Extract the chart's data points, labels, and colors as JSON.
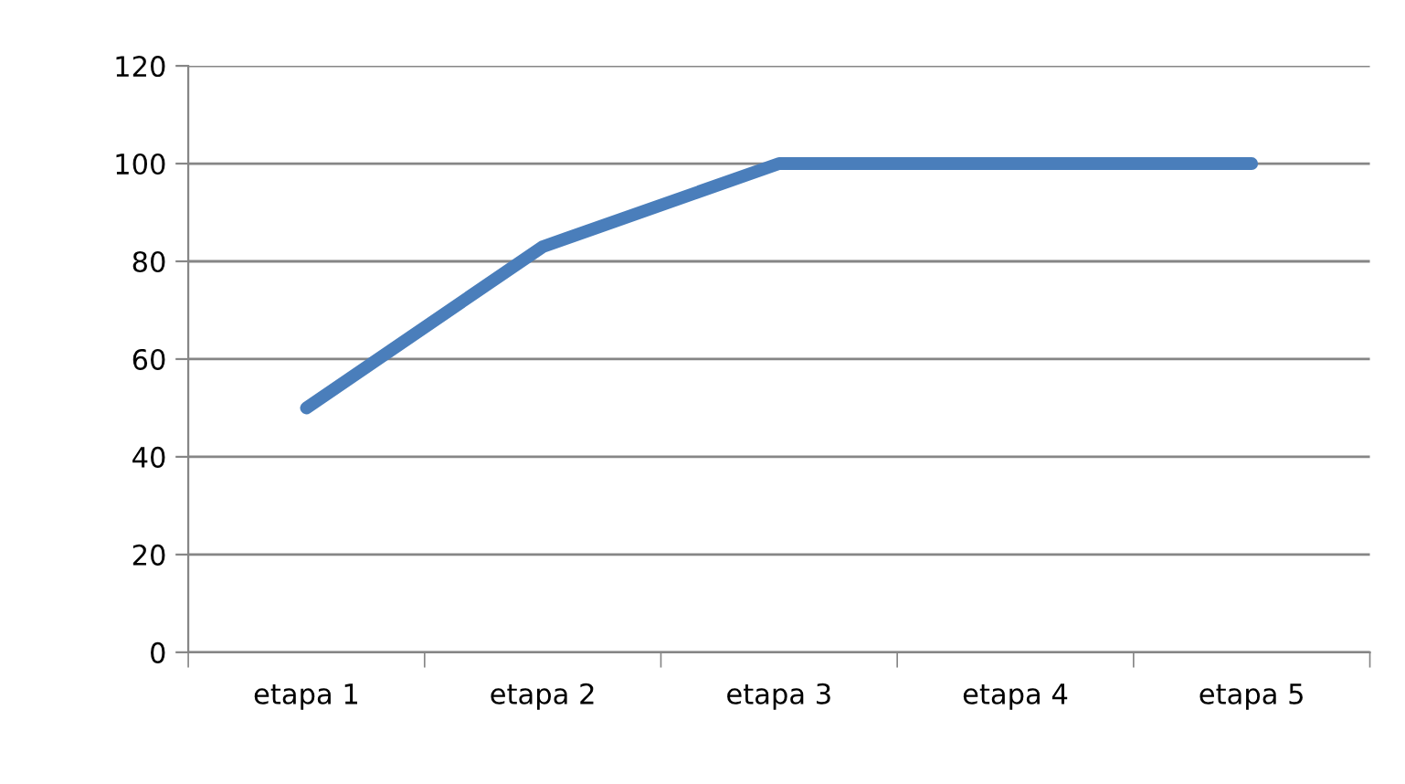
{
  "chart_data": {
    "type": "line",
    "categories": [
      "etapa 1",
      "etapa 2",
      "etapa 3",
      "etapa 4",
      "etapa 5"
    ],
    "series": [
      {
        "color": "#4a7ebb",
        "values": [
          50,
          83,
          100,
          100,
          100
        ]
      }
    ],
    "ylim": [
      0,
      120
    ],
    "yticks": [
      0,
      20,
      40,
      60,
      80,
      100,
      120
    ],
    "grid": "y",
    "legend": false,
    "marker": "none",
    "line_style": "solid"
  }
}
